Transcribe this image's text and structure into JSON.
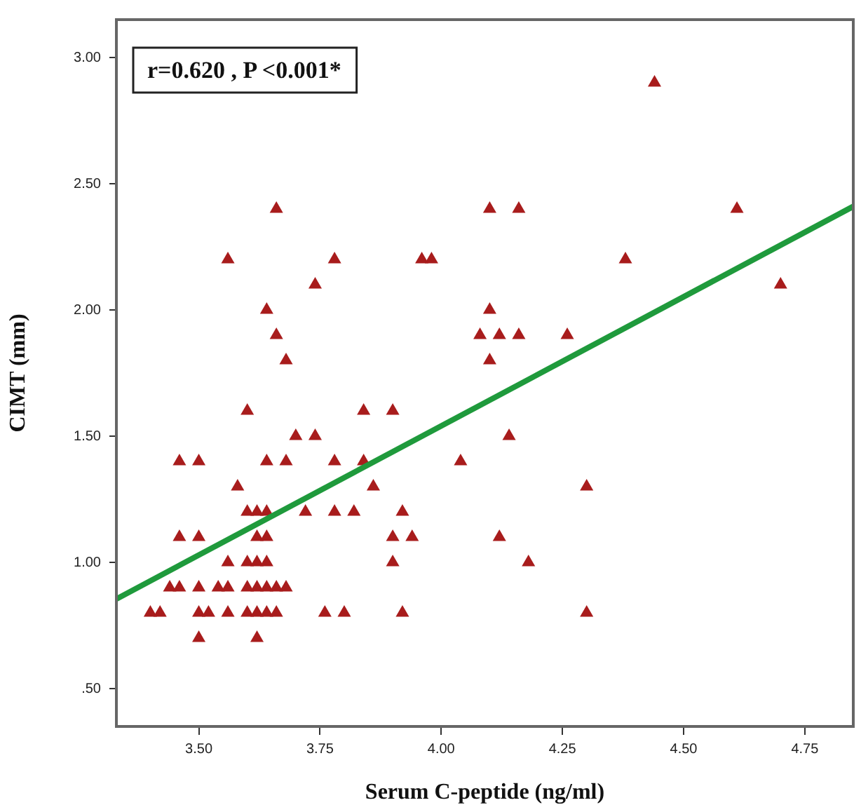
{
  "chart_data": {
    "type": "scatter",
    "xlabel": "Serum C-peptide (ng/ml)",
    "ylabel": "CIMT (mm)",
    "annotations": [
      "r=0.620 , P <0.001*"
    ],
    "xlim": [
      3.33,
      4.85
    ],
    "ylim": [
      0.35,
      3.15
    ],
    "xticks": [
      {
        "value": 3.5,
        "label": "3.50"
      },
      {
        "value": 3.75,
        "label": "3.75"
      },
      {
        "value": 4,
        "label": "4.00"
      },
      {
        "value": 4.25,
        "label": "4.25"
      },
      {
        "value": 4.5,
        "label": "4.50"
      },
      {
        "value": 4.75,
        "label": "4.75"
      }
    ],
    "yticks": [
      {
        "value": 0.5,
        "label": ".50"
      },
      {
        "value": 1,
        "label": "1.00"
      },
      {
        "value": 1.5,
        "label": "1.50"
      },
      {
        "value": 2,
        "label": "2.00"
      },
      {
        "value": 2.5,
        "label": "2.50"
      },
      {
        "value": 3,
        "label": "3.00"
      }
    ],
    "grid": false,
    "legend": false,
    "marker": "triangle",
    "series": [
      {
        "color": "#a81c1c",
        "x": [
          4.44,
          4.1,
          4.16,
          4.61,
          3.66,
          4.38,
          3.56,
          3.78,
          3.96,
          3.98,
          4.7,
          3.74,
          4.1,
          3.64,
          4.08,
          4.12,
          4.16,
          4.26,
          3.66,
          4.1,
          3.68,
          3.6,
          3.84,
          3.9,
          3.7,
          3.74,
          4.14,
          3.46,
          3.5,
          3.64,
          3.68,
          3.78,
          3.84,
          4.04,
          3.58,
          3.86,
          4.3,
          3.6,
          3.62,
          3.64,
          3.72,
          3.78,
          3.82,
          3.92,
          3.46,
          3.5,
          3.62,
          3.64,
          3.9,
          3.94,
          4.12,
          3.56,
          3.6,
          3.62,
          3.64,
          3.9,
          4.18,
          3.44,
          3.46,
          3.5,
          3.54,
          3.56,
          3.6,
          3.62,
          3.64,
          3.66,
          3.68,
          3.4,
          3.42,
          3.5,
          3.52,
          3.56,
          3.6,
          3.62,
          3.64,
          3.66,
          3.76,
          3.8,
          3.92,
          4.3,
          3.5,
          3.62
        ],
        "values": [
          2.9,
          2.4,
          2.4,
          2.4,
          2.4,
          2.2,
          2.2,
          2.2,
          2.2,
          2.2,
          2.1,
          2.1,
          2.0,
          2.0,
          1.9,
          1.9,
          1.9,
          1.9,
          1.9,
          1.8,
          1.8,
          1.6,
          1.6,
          1.6,
          1.5,
          1.5,
          1.5,
          1.4,
          1.4,
          1.4,
          1.4,
          1.4,
          1.4,
          1.4,
          1.3,
          1.3,
          1.3,
          1.2,
          1.2,
          1.2,
          1.2,
          1.2,
          1.2,
          1.2,
          1.1,
          1.1,
          1.1,
          1.1,
          1.1,
          1.1,
          1.1,
          1.0,
          1.0,
          1.0,
          1.0,
          1.0,
          1.0,
          0.9,
          0.9,
          0.9,
          0.9,
          0.9,
          0.9,
          0.9,
          0.9,
          0.9,
          0.9,
          0.8,
          0.8,
          0.8,
          0.8,
          0.8,
          0.8,
          0.8,
          0.8,
          0.8,
          0.8,
          0.8,
          0.8,
          0.8,
          0.7,
          0.7
        ]
      },
      {
        "type": "line",
        "color": "#1f9a3c",
        "marker": "none",
        "x": [
          3.33,
          4.85
        ],
        "values": [
          0.855,
          2.41
        ]
      }
    ]
  }
}
